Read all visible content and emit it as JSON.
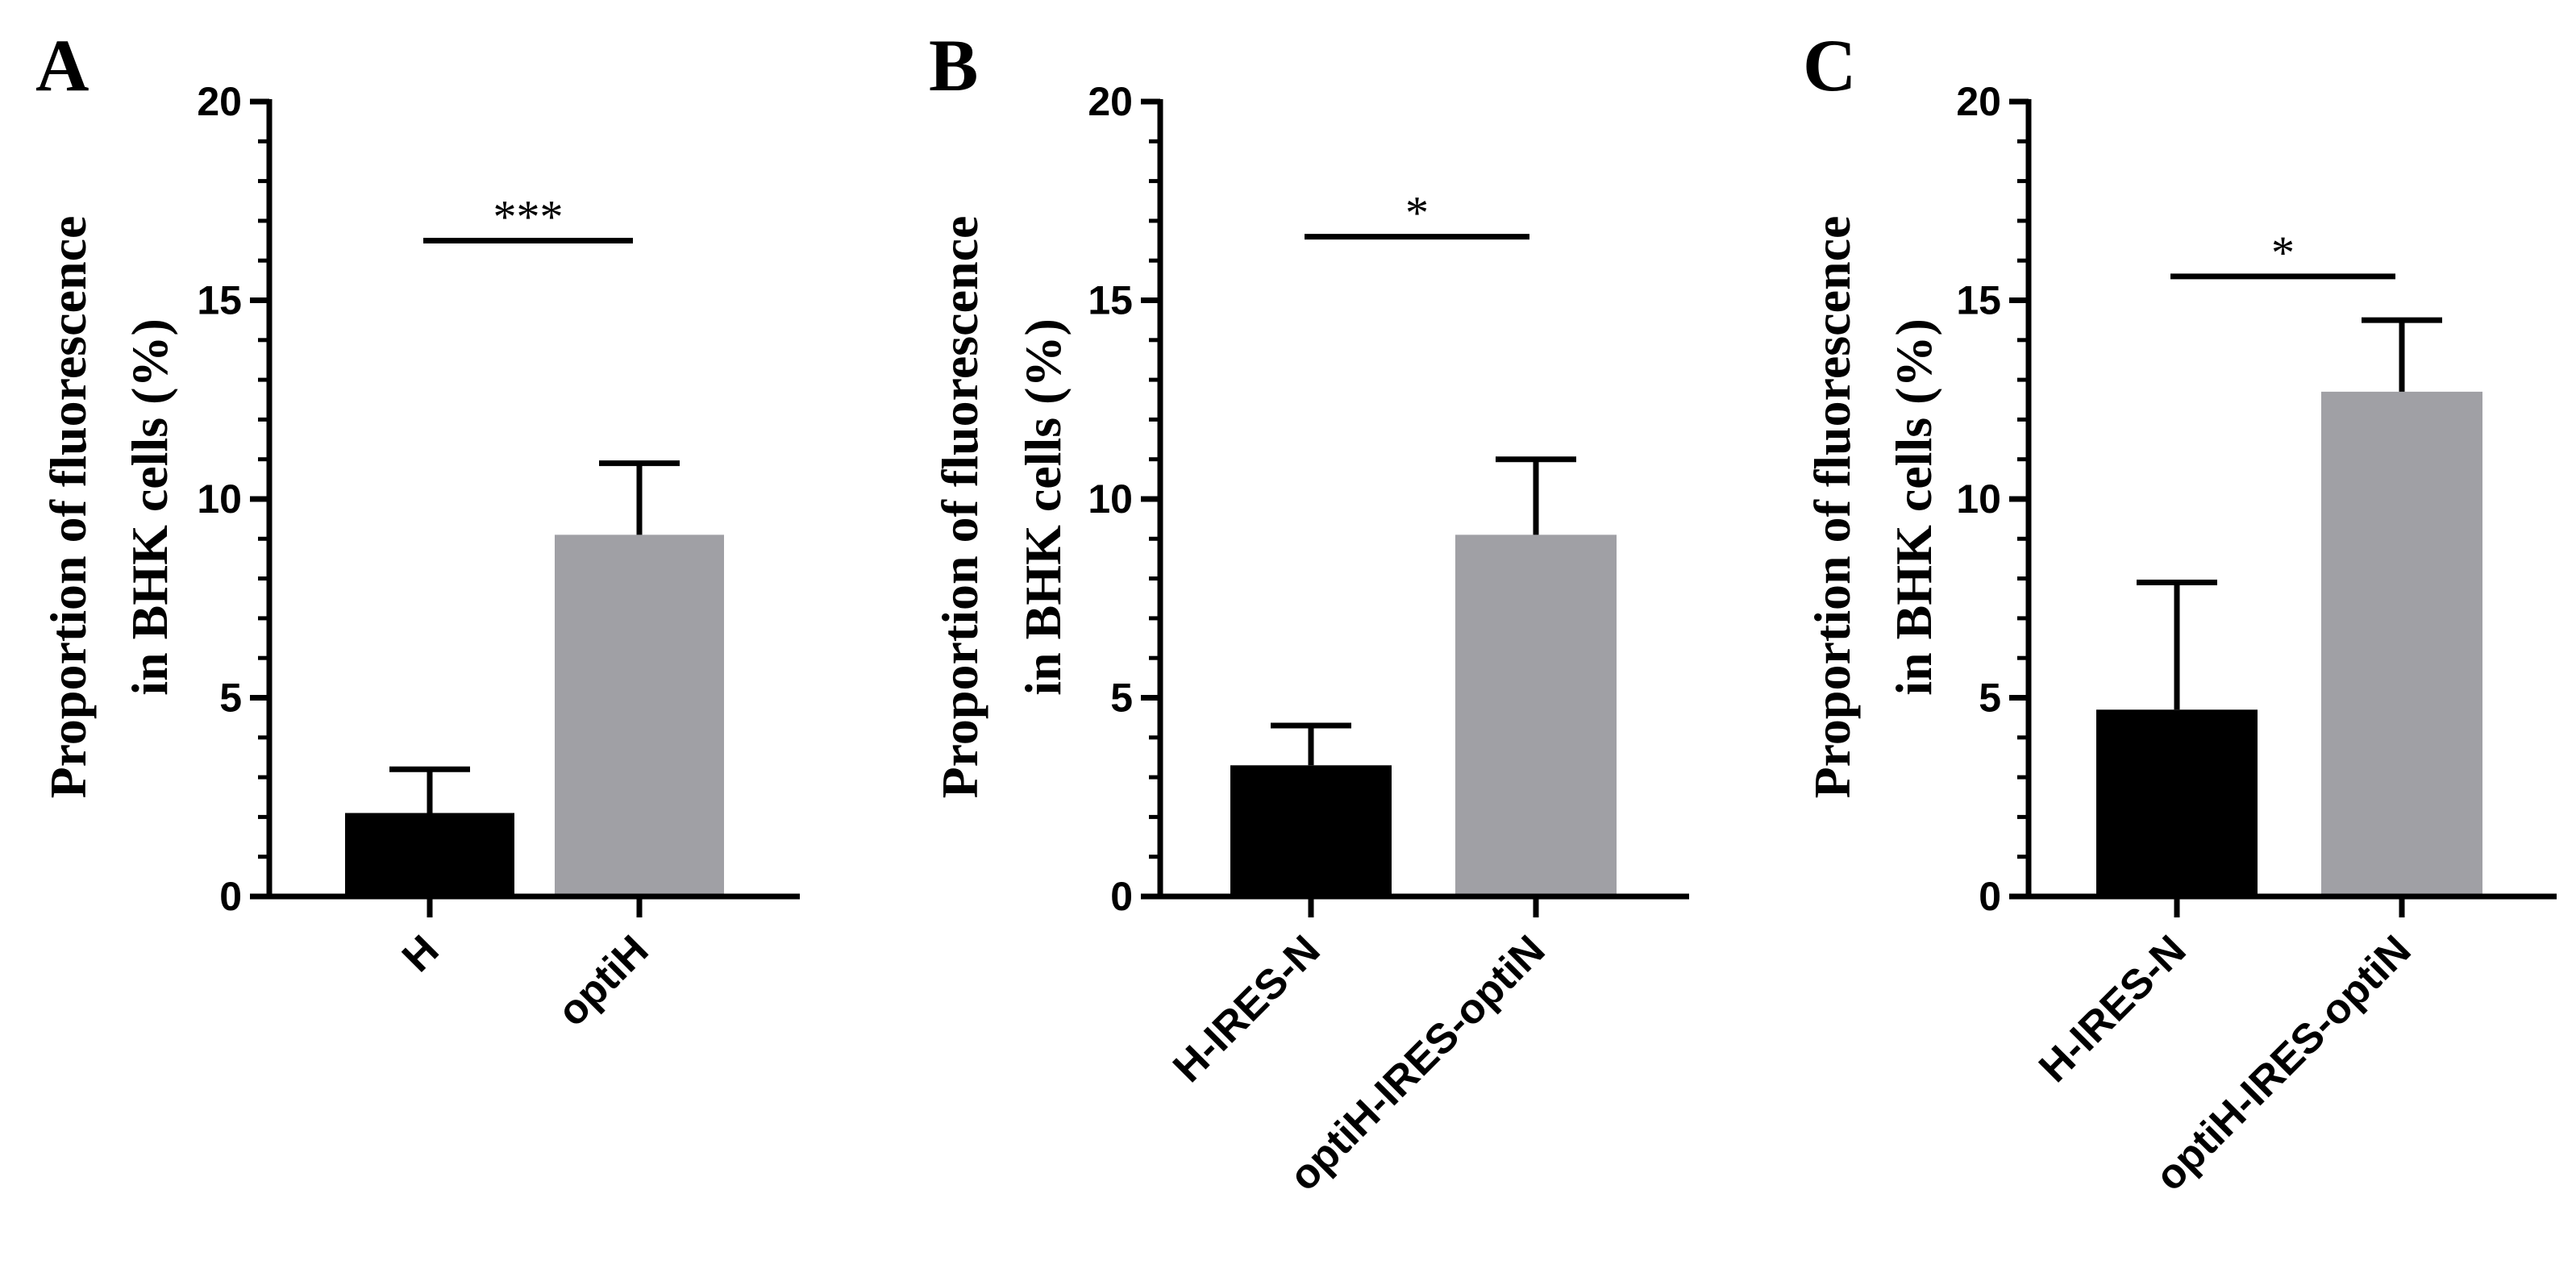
{
  "chart_data": [
    {
      "type": "bar",
      "panel": "A",
      "categories": [
        "H",
        "optiH"
      ],
      "values": [
        2.1,
        9.1
      ],
      "errors": [
        1.1,
        1.8
      ],
      "colors": [
        "#000000",
        "#a0a0a5"
      ],
      "ylabel": [
        "Proportion of fluorescence",
        "in BHK cells (%)"
      ],
      "ylim": [
        0,
        20
      ],
      "yticks": [
        "0",
        "5",
        "10",
        "15",
        "20"
      ],
      "significance": "***",
      "sig_y": 16.5
    },
    {
      "type": "bar",
      "panel": "B",
      "categories": [
        "H-IRES-N",
        "optiH-IRES-optiN"
      ],
      "values": [
        3.3,
        9.1
      ],
      "errors": [
        1.0,
        1.9
      ],
      "colors": [
        "#000000",
        "#a0a0a5"
      ],
      "ylabel": [
        "Proportion of fluorescence",
        "in BHK cells (%)"
      ],
      "ylim": [
        0,
        20
      ],
      "yticks": [
        "0",
        "5",
        "10",
        "15",
        "20"
      ],
      "significance": "*",
      "sig_y": 16.6
    },
    {
      "type": "bar",
      "panel": "C",
      "categories": [
        "H-IRES-N",
        "optiH-IRES-optiN"
      ],
      "values": [
        4.7,
        12.7
      ],
      "errors": [
        3.2,
        1.8
      ],
      "colors": [
        "#000000",
        "#a0a0a5"
      ],
      "ylabel": [
        "Proportion of fluorescence",
        "in BHK cells (%)"
      ],
      "ylim": [
        0,
        20
      ],
      "yticks": [
        "0",
        "5",
        "10",
        "15",
        "20"
      ],
      "significance": "*",
      "sig_y": 15.6
    }
  ]
}
